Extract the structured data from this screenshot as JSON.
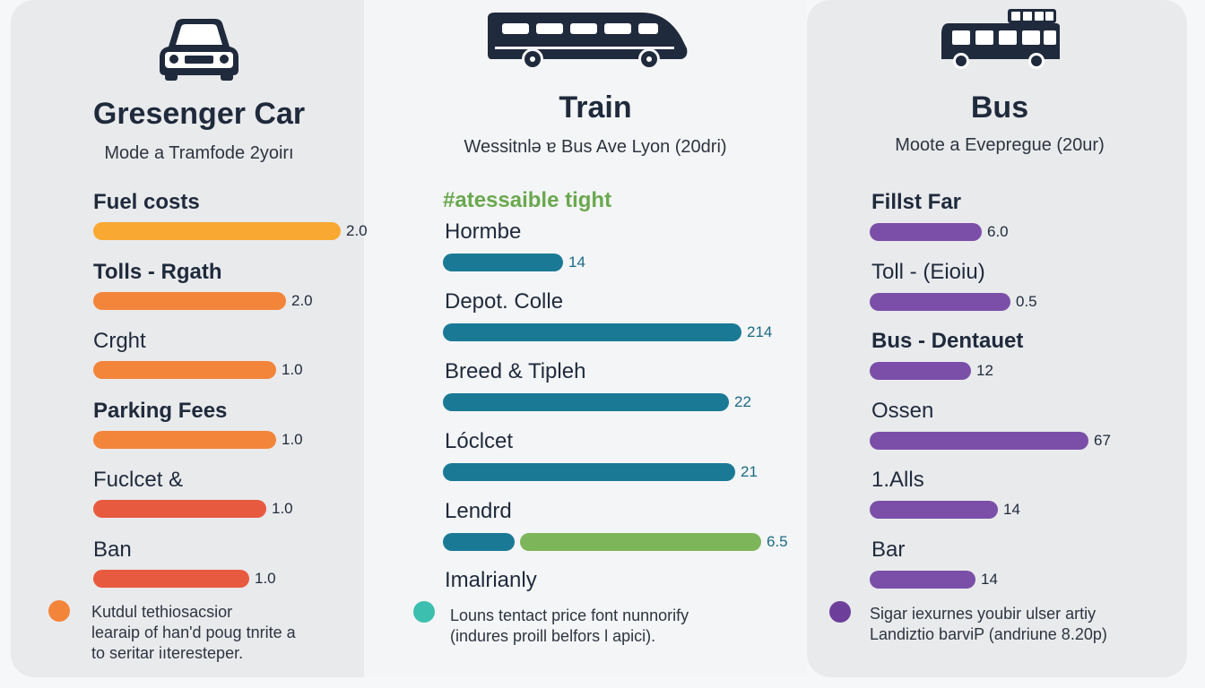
{
  "colors": {
    "car_orange_1": "#f9a831",
    "car_orange_2": "#f3853b",
    "car_red": "#e85a3f",
    "train_teal": "#1a7a96",
    "train_green": "#7cb55a",
    "bus_purple": "#7b4fa8",
    "dot_orange": "#f3853b",
    "dot_teal": "#3cbfae",
    "dot_purple": "#6d3f9a"
  },
  "icons": {
    "car": "car-icon",
    "train": "train-icon",
    "bus": "bus-icon"
  },
  "chart_data": [
    {
      "type": "bar",
      "title": "Gresenger Car",
      "subtitle": "Mode a Tramfode 2yoirı",
      "categories": [
        "Fuel costs",
        "Tolls - Rgath",
        "Crght",
        "Parking Fees",
        "Fuclcet &",
        "Ban"
      ],
      "values": [
        2.0,
        2.0,
        1.0,
        1.0,
        1.0,
        1.0
      ],
      "value_labels": [
        "2.0",
        "2.0",
        "1.0",
        "1.0",
        "1.0",
        "1.0"
      ],
      "bar_fraction": [
        1.0,
        0.78,
        0.74,
        0.74,
        0.7,
        0.63
      ],
      "colors": [
        "#f9a831",
        "#f3853b",
        "#f3853b",
        "#f3853b",
        "#e85a3f",
        "#e85a3f"
      ],
      "note": [
        "Kutdul tethiosacsior",
        "learaip of han'd poug tnrite a",
        "to seritar iıteresteper."
      ]
    },
    {
      "type": "bar",
      "title": "Train",
      "subtitle": "Wessitnlə ɐ Bus Ave Lyon (20dri)",
      "section_head": "#atessaible tight",
      "categories": [
        "Hormbe",
        "Depot. Colle",
        "Breed & Tipleh",
        "Lóclcet",
        "Lendrd"
      ],
      "values": [
        14,
        214,
        22,
        21,
        6.5
      ],
      "value_labels": [
        "14",
        "214",
        "22",
        "21",
        "6.5"
      ],
      "bar_fraction": [
        0.37,
        0.92,
        0.88,
        0.9,
        0.98
      ],
      "colors": [
        "#1a7a96",
        "#1a7a96",
        "#1a7a96",
        "#1a7a96",
        "#7cb55a"
      ],
      "extra_label": "Imalrianly",
      "note": [
        "Louns tentact price font nunnorify",
        "(indures proill belfors l apici)."
      ]
    },
    {
      "type": "bar",
      "title": "Bus",
      "subtitle": "Moote a Evepregue (20ur)",
      "categories": [
        "Fillst Far",
        "Toll - (Eioiu)",
        "Bus - Dentauet",
        "Ossen",
        "1.Alls",
        "Bar"
      ],
      "values": [
        6.0,
        0.5,
        12,
        67,
        14,
        14
      ],
      "value_labels": [
        "6.0",
        "0.5",
        "12",
        "67",
        "14",
        "14"
      ],
      "bar_fraction": [
        0.51,
        0.64,
        0.46,
        0.99,
        0.58,
        0.48
      ],
      "colors": [
        "#7b4fa8",
        "#7b4fa8",
        "#7b4fa8",
        "#7b4fa8",
        "#7b4fa8",
        "#7b4fa8"
      ],
      "note": [
        "Sigar iexurnes youbir ulser artiy",
        "Landiztio barviP (andriune 8.20p)"
      ]
    }
  ]
}
